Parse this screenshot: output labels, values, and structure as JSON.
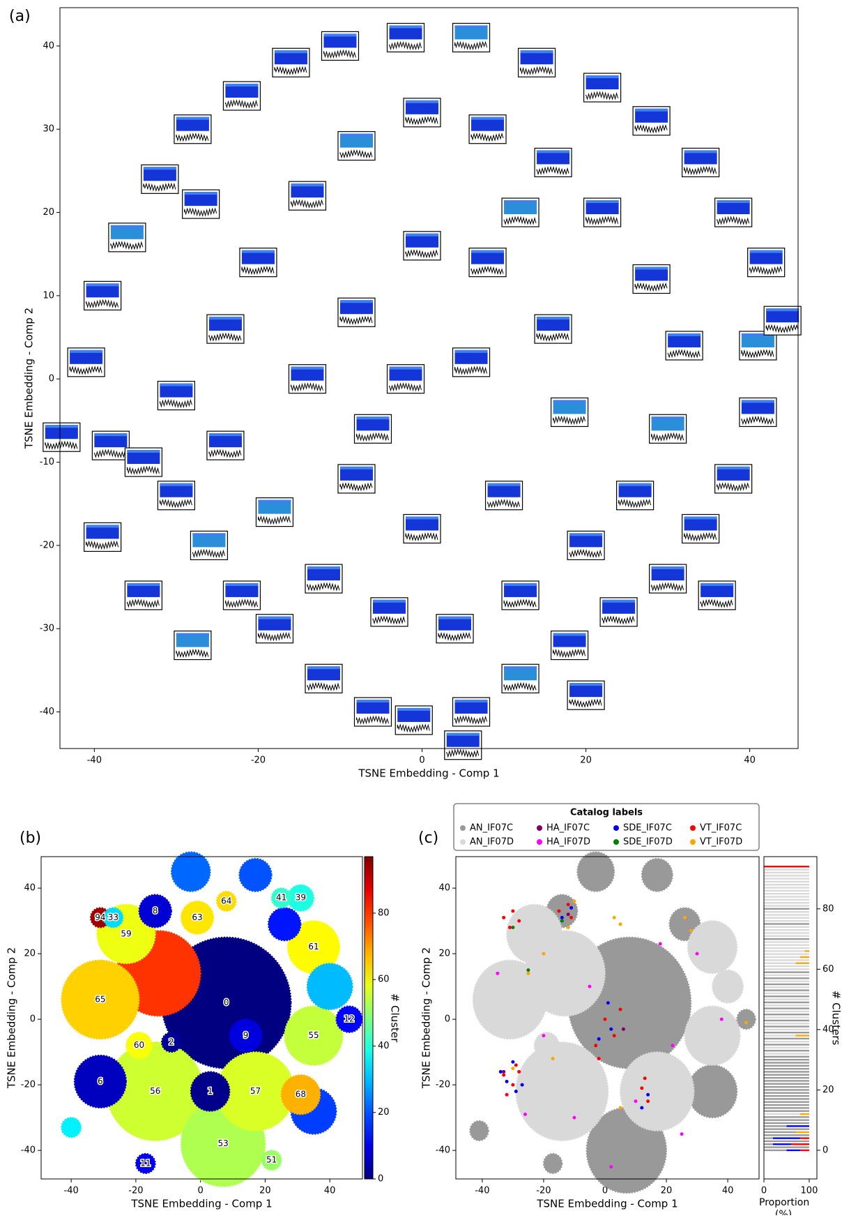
{
  "chart_data": [
    {
      "type": "thumbnail-scatter",
      "panel_label": "(a)",
      "x_label": "TSNE Embedding - Comp 1",
      "y_label": "TSNE Embedding - Comp 2",
      "xlim": [
        -44.2,
        45.9
      ],
      "ylim": [
        -44.4,
        44.6
      ],
      "xticks": [
        -40,
        -20,
        0,
        20,
        40
      ],
      "yticks": [
        -40,
        -30,
        -20,
        -10,
        0,
        10,
        20,
        30,
        40
      ],
      "x": [
        -38,
        -34,
        -30,
        -26,
        -22,
        -18,
        -12,
        -6,
        -1,
        6,
        12,
        18,
        24,
        30,
        34,
        38,
        41,
        41,
        42,
        38,
        34,
        28,
        22,
        14,
        6,
        -2,
        -10,
        -16,
        -22,
        -28,
        -32,
        -36,
        -39,
        -41,
        -30,
        -24,
        -20,
        -14,
        -8,
        0,
        8,
        16,
        22,
        28,
        32,
        30,
        26,
        20,
        12,
        4,
        -4,
        -12,
        -18,
        -24,
        -14,
        -8,
        0,
        8,
        16,
        18,
        10,
        0,
        -8,
        -2,
        6,
        -27,
        12,
        -6,
        44,
        5,
        -44,
        -39,
        -34,
        -28,
        20,
        36
      ],
      "y": [
        -8,
        -10,
        -14,
        -20,
        -26,
        -30,
        -36,
        -40,
        -41,
        -40,
        -36,
        -32,
        -28,
        -24,
        -18,
        -12,
        -4,
        4,
        14,
        20,
        26,
        31,
        35,
        38,
        41,
        41,
        40,
        38,
        34,
        30,
        24,
        17,
        10,
        2,
        -2,
        6,
        14,
        22,
        28,
        32,
        30,
        26,
        20,
        12,
        4,
        -6,
        -14,
        -20,
        -26,
        -30,
        -28,
        -24,
        -16,
        -8,
        0,
        8,
        16,
        14,
        6,
        -4,
        -14,
        -18,
        -12,
        0,
        2,
        21,
        20,
        -6,
        7,
        -44,
        -7,
        -19,
        -26,
        -32,
        -38,
        -26
      ]
    },
    {
      "type": "cluster-map",
      "panel_label": "(b)",
      "x_label": "TSNE Embedding - Comp 1",
      "y_label": "TSNE Embedding - Comp 2",
      "xlim": [
        -49.3,
        50.1
      ],
      "ylim": [
        -48.7,
        49.6
      ],
      "xticks": [
        -40,
        -20,
        0,
        20,
        40
      ],
      "yticks": [
        -40,
        -20,
        0,
        20,
        40
      ],
      "colormap": "jet",
      "x": [
        8,
        -14,
        -13,
        7,
        -31,
        17,
        35,
        -23,
        35,
        -31,
        40,
        35,
        31,
        3,
        -3,
        14,
        -14,
        -1,
        17,
        26,
        46,
        31,
        -19,
        -9,
        -17,
        25,
        22,
        8,
        -31,
        -27,
        -40
      ],
      "y": [
        5,
        -22,
        14,
        -38,
        6,
        -22,
        -5,
        26,
        22,
        -19,
        10,
        -28,
        -23,
        -22,
        45,
        -5,
        33,
        31,
        44,
        29,
        0,
        37,
        -8,
        -7,
        -44,
        37,
        -43,
        36,
        31,
        31,
        -33
      ],
      "sizes": [
        20,
        15,
        13,
        13,
        12,
        12,
        9,
        9,
        8,
        8,
        7,
        7,
        6,
        6,
        6,
        5,
        5,
        5,
        5,
        5,
        4,
        4,
        4,
        3,
        3,
        3,
        3,
        3,
        3,
        3,
        3
      ],
      "values": [
        0,
        56,
        80,
        53,
        65,
        57,
        55,
        59,
        61,
        6,
        30,
        18,
        68,
        1,
        22,
        9,
        8,
        63,
        20,
        14,
        12,
        39,
        60,
        2,
        11,
        41,
        51,
        64,
        94,
        33,
        35
      ],
      "labels": [
        "0",
        "56",
        null,
        "53",
        "65",
        "57",
        "55",
        "59",
        "61",
        "6",
        null,
        null,
        "68",
        "1",
        null,
        "9",
        "8",
        "63",
        null,
        null,
        "12",
        "39",
        "60",
        "2",
        "11",
        "41",
        "51",
        "64",
        "94",
        "33",
        null
      ],
      "colorbar": {
        "label": "# Cluster",
        "lim": [
          0,
          97
        ],
        "ticks": [
          0,
          20,
          40,
          60,
          80
        ]
      }
    },
    {
      "type": "label-map",
      "panel_label": "(c)",
      "x_label": "TSNE Embedding - Comp 1",
      "y_label": "TSNE Embedding - Comp 2",
      "xlim": [
        -48.6,
        50.2
      ],
      "ylim": [
        -48.7,
        49.6
      ],
      "xticks": [
        -40,
        -20,
        0,
        20,
        40
      ],
      "yticks": [
        -40,
        -20,
        0,
        20,
        40
      ],
      "legend": {
        "title": "Catalog labels",
        "position": "top"
      },
      "series": [
        {
          "name": "AN_IF07C",
          "color": "#999999",
          "x": [
            8,
            -3,
            17,
            -14,
            26,
            35,
            7,
            14,
            -17,
            -41,
            46
          ],
          "y": [
            5,
            45,
            44,
            33,
            29,
            -22,
            -40,
            -5,
            -44,
            -34,
            0
          ],
          "sizes": [
            20,
            6,
            5,
            5,
            5,
            8,
            13,
            6,
            3,
            3,
            3
          ],
          "proportions": [
            50,
            100,
            20,
            100,
            20,
            100,
            70,
            100,
            50,
            100,
            100,
            100,
            0,
            100,
            100,
            100,
            100,
            100,
            100,
            100,
            100,
            100,
            100,
            100,
            100,
            100,
            100,
            100,
            100,
            100,
            100,
            100,
            0,
            100,
            0,
            100,
            0,
            100,
            0,
            100,
            0,
            100,
            0,
            100,
            0,
            100,
            0,
            100,
            0,
            100,
            0,
            100,
            0,
            100,
            0,
            100,
            0,
            100,
            0,
            100,
            0,
            0,
            0,
            0,
            0,
            0,
            0,
            0,
            0,
            0,
            100,
            0,
            0,
            0,
            0,
            100,
            0,
            0,
            0,
            0,
            100,
            0,
            0,
            0,
            0,
            0,
            0,
            0,
            0,
            0,
            0,
            0,
            0,
            0,
            0
          ]
        },
        {
          "name": "AN_IF07D",
          "color": "#d9d9d9",
          "x": [
            -13,
            -31,
            -14,
            17,
            35,
            35,
            -23,
            -19,
            40
          ],
          "y": [
            14,
            6,
            -22,
            -22,
            -5,
            22,
            26,
            -8,
            10
          ],
          "sizes": [
            13,
            12,
            15,
            12,
            9,
            8,
            9,
            4,
            5
          ],
          "proportions": [
            0,
            0,
            0,
            0,
            0,
            0,
            0,
            0,
            0,
            0,
            0,
            0,
            80,
            0,
            0,
            0,
            0,
            0,
            0,
            0,
            0,
            0,
            0,
            0,
            0,
            0,
            0,
            0,
            0,
            0,
            0,
            0,
            100,
            0,
            100,
            0,
            100,
            0,
            70,
            0,
            100,
            0,
            100,
            0,
            100,
            0,
            100,
            0,
            100,
            0,
            100,
            0,
            100,
            0,
            100,
            0,
            100,
            0,
            100,
            0,
            100,
            100,
            70,
            100,
            80,
            100,
            90,
            100,
            100,
            100,
            0,
            100,
            100,
            100,
            100,
            0,
            100,
            100,
            100,
            100,
            0,
            100,
            100,
            100,
            100,
            100,
            100,
            100,
            100,
            100,
            100,
            100,
            100,
            100,
            0
          ]
        },
        {
          "name": "HA_IF07C",
          "color": "#800060",
          "x": [
            -33,
            -12,
            6
          ],
          "y": [
            -16,
            32,
            -3
          ]
        },
        {
          "name": "HA_IF07D",
          "color": "#ff00ff",
          "x": [
            -35,
            -5,
            10,
            22,
            -20,
            30,
            -10,
            38,
            2,
            -26,
            18,
            25
          ],
          "y": [
            14,
            10,
            -25,
            -8,
            -5,
            20,
            -30,
            0,
            -45,
            -29,
            23,
            -35
          ]
        },
        {
          "name": "SDE_IF07C",
          "color": "#0000ff",
          "x": [
            -14,
            -11,
            -32,
            -29,
            -34,
            -30,
            2,
            -2,
            14,
            12,
            1,
            -27
          ],
          "y": [
            31,
            34,
            -19,
            -22,
            -16,
            -13,
            -3,
            -6,
            -23,
            -27,
            5,
            -20
          ],
          "proportions": [
            30,
            0,
            40,
            0,
            60,
            0,
            0,
            0,
            50,
            0,
            0,
            0,
            0,
            0,
            0,
            0,
            0,
            0,
            0,
            0,
            0,
            0,
            0,
            0,
            0,
            0,
            0,
            0,
            0,
            0,
            0,
            0,
            0,
            0,
            0,
            0,
            0,
            0,
            0,
            0,
            0,
            0,
            0,
            0,
            0,
            0,
            0,
            0,
            0,
            0,
            0,
            0,
            0,
            0,
            0,
            0,
            0,
            0,
            0,
            0,
            0,
            0,
            0,
            0,
            0,
            0,
            0,
            0,
            0,
            0,
            0,
            0,
            0,
            0,
            0,
            0,
            0,
            0,
            0,
            0,
            0,
            0,
            0,
            0,
            0,
            0,
            0,
            0,
            0,
            0,
            0,
            0,
            0,
            0,
            0
          ]
        },
        {
          "name": "SDE_IF07D",
          "color": "#008000",
          "x": [
            -30,
            -14,
            -25
          ],
          "y": [
            28,
            30,
            15
          ]
        },
        {
          "name": "VT_IF07C",
          "color": "#ff0000",
          "x": [
            -33,
            -30,
            -28,
            -31,
            -15,
            -12,
            -11,
            -33,
            -30,
            -28,
            -32,
            0,
            3,
            -3,
            5,
            12,
            14,
            13,
            -29,
            -2
          ],
          "y": [
            31,
            33,
            30,
            28,
            33,
            35,
            31,
            -17,
            -20,
            -16,
            -23,
            0,
            -5,
            -8,
            3,
            -21,
            -25,
            -18,
            -14,
            -12
          ],
          "proportions": [
            20,
            0,
            40,
            0,
            20,
            0,
            0,
            0,
            0,
            0,
            0,
            0,
            0,
            0,
            0,
            0,
            0,
            0,
            0,
            0,
            0,
            0,
            0,
            0,
            0,
            0,
            0,
            0,
            0,
            0,
            0,
            0,
            0,
            0,
            0,
            0,
            0,
            0,
            0,
            0,
            0,
            0,
            0,
            0,
            0,
            0,
            0,
            0,
            0,
            0,
            0,
            0,
            0,
            0,
            0,
            0,
            0,
            0,
            0,
            0,
            0,
            0,
            0,
            0,
            0,
            0,
            0,
            0,
            0,
            0,
            0,
            0,
            0,
            0,
            0,
            0,
            0,
            0,
            0,
            0,
            0,
            0,
            0,
            0,
            0,
            0,
            0,
            0,
            0,
            0,
            0,
            0,
            0,
            0,
            100
          ]
        },
        {
          "name": "VT_IF07D",
          "color": "#ffa500",
          "x": [
            -10,
            -12,
            3,
            5,
            26,
            28,
            -20,
            -25,
            -17,
            46,
            -30,
            5
          ],
          "y": [
            36,
            28,
            31,
            29,
            31,
            27,
            20,
            14,
            -12,
            -1,
            -15,
            -27
          ],
          "proportions": [
            0,
            0,
            0,
            0,
            0,
            0,
            30,
            0,
            0,
            0,
            0,
            0,
            20,
            0,
            0,
            0,
            0,
            0,
            0,
            0,
            0,
            0,
            0,
            0,
            0,
            0,
            0,
            0,
            0,
            0,
            0,
            0,
            0,
            0,
            0,
            0,
            0,
            0,
            30,
            0,
            0,
            0,
            0,
            0,
            0,
            0,
            0,
            0,
            0,
            0,
            0,
            0,
            0,
            0,
            0,
            0,
            0,
            0,
            0,
            0,
            0,
            0,
            30,
            0,
            20,
            0,
            10,
            0,
            0,
            0,
            0,
            0,
            0,
            0,
            0,
            0,
            0,
            0,
            0,
            0,
            0,
            0,
            0,
            0,
            0,
            0,
            0,
            0,
            0,
            0,
            0,
            0,
            0,
            0,
            0
          ]
        }
      ],
      "bar_panel": {
        "x_label": "Proportion (%)",
        "y_label": "# Clusters",
        "xlim": [
          0,
          117
        ],
        "ylim": [
          -9.5,
          97.3
        ],
        "xticks": [
          0,
          100
        ],
        "yticks": [
          0,
          20,
          40,
          60,
          80
        ],
        "clusters": [
          0,
          1,
          2,
          3,
          4,
          5,
          6,
          7,
          8,
          9,
          10,
          11,
          12,
          13,
          14,
          15,
          16,
          17,
          18,
          19,
          20,
          21,
          22,
          23,
          24,
          25,
          26,
          27,
          28,
          29,
          30,
          31,
          32,
          33,
          34,
          35,
          36,
          37,
          38,
          39,
          40,
          41,
          42,
          43,
          44,
          45,
          46,
          47,
          48,
          49,
          50,
          51,
          52,
          53,
          54,
          55,
          56,
          57,
          58,
          59,
          60,
          61,
          62,
          63,
          64,
          65,
          66,
          67,
          68,
          69,
          70,
          71,
          72,
          73,
          74,
          75,
          76,
          77,
          78,
          79,
          80,
          81,
          82,
          83,
          84,
          85,
          86,
          87,
          88,
          89,
          90,
          91,
          92,
          93,
          94
        ]
      }
    }
  ]
}
